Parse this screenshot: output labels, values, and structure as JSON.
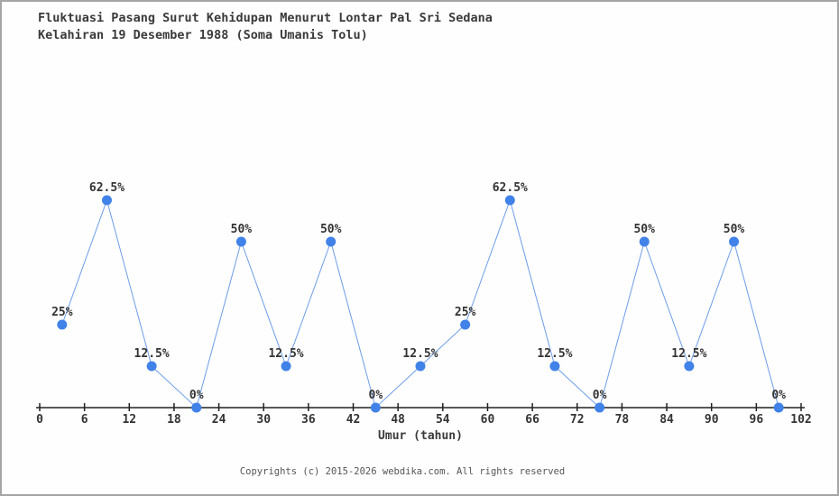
{
  "title": {
    "line1": "Fluktuasi Pasang Surut Kehidupan Menurut Lontar Pal Sri Sedana",
    "line2": "Kelahiran 19 Desember 1988 (Soma Umanis Tolu)"
  },
  "chart_data": {
    "type": "line",
    "title": "Fluktuasi Pasang Surut Kehidupan Menurut Lontar Pal Sri Sedana Kelahiran 19 Desember 1988 (Soma Umanis Tolu)",
    "x": [
      3,
      9,
      15,
      21,
      27,
      33,
      39,
      45,
      51,
      57,
      63,
      69,
      75,
      81,
      87,
      93,
      99
    ],
    "values": [
      25,
      62.5,
      12.5,
      0,
      50,
      12.5,
      50,
      0,
      12.5,
      25,
      62.5,
      12.5,
      0,
      50,
      12.5,
      50,
      0
    ],
    "point_labels": [
      "25%",
      "62.5%",
      "12.5%",
      "0%",
      "50%",
      "12.5%",
      "50%",
      "0%",
      "12.5%",
      "25%",
      "62.5%",
      "12.5%",
      "0%",
      "50%",
      "12.5%",
      "50%",
      "0%"
    ],
    "x_ticks": [
      0,
      6,
      12,
      18,
      24,
      30,
      36,
      42,
      48,
      54,
      60,
      66,
      72,
      78,
      84,
      90,
      96,
      102
    ],
    "xlabel": "Umur (tahun)",
    "ylabel": "",
    "xlim": [
      0,
      102
    ],
    "ylim": [
      0,
      75
    ],
    "grid": false,
    "legend": false,
    "marker_color": "#4182e8",
    "line_color": "#6d9ce8",
    "text_color": "#333333",
    "axis_color": "#222222"
  },
  "footer": {
    "copyright": "Copyrights (c) 2015-2026 webdika.com. All rights reserved"
  }
}
